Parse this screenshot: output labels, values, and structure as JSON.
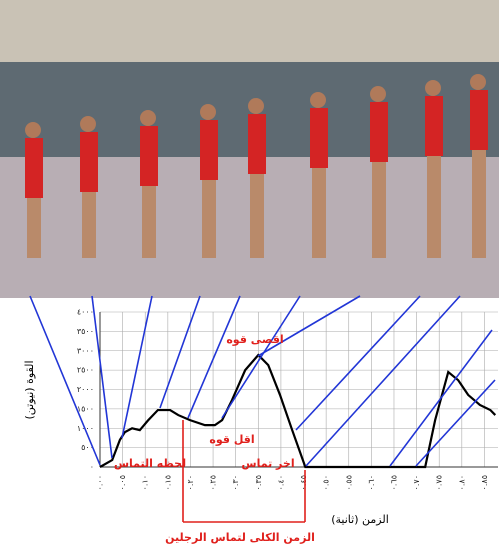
{
  "chart_data": {
    "type": "line",
    "x_label": "الزمن (ثانية)",
    "y_label": "القوة (نيوتن)",
    "annotations": {
      "max_force": "اقصى قوه",
      "min_force": "اقل قوه",
      "contact_moment": "لحظه التماس",
      "last_contact": "اخر تماس",
      "total_contact_time": "الزمن الكلى لتماس الرجلين"
    },
    "x": [
      0,
      0.027,
      0.044,
      0.055,
      0.071,
      0.088,
      0.106,
      0.128,
      0.155,
      0.173,
      0.199,
      0.232,
      0.254,
      0.27,
      0.292,
      0.321,
      0.35,
      0.372,
      0.398,
      0.425,
      0.454,
      0.6,
      0.719,
      0.741,
      0.77,
      0.792,
      0.814,
      0.84,
      0.863,
      0.874
    ],
    "series": [
      {
        "color": "#000000",
        "values": [
          0,
          180,
          700,
          900,
          1000,
          950,
          1200,
          1470,
          1470,
          1340,
          1210,
          1080,
          1080,
          1210,
          1730,
          2500,
          2890,
          2630,
          1860,
          950,
          0,
          0,
          0,
          1210,
          2450,
          2240,
          1860,
          1600,
          1470,
          1340
        ]
      }
    ],
    "xlim": [
      0,
      0.88
    ],
    "ylim": [
      0,
      4000
    ],
    "xticks": [
      {
        "value": 0,
        "label": "٠.٠٠"
      },
      {
        "value": 0.05,
        "label": "٠.٠٥"
      },
      {
        "value": 0.1,
        "label": "٠.١٠"
      },
      {
        "value": 0.15,
        "label": "٠.١٥"
      },
      {
        "value": 0.2,
        "label": "٠.٢٠"
      },
      {
        "value": 0.25,
        "label": "٠.٢٥"
      },
      {
        "value": 0.3,
        "label": "٠.٣٠"
      },
      {
        "value": 0.35,
        "label": "٠.٣٥"
      },
      {
        "value": 0.4,
        "label": "٠.٤٠"
      },
      {
        "value": 0.45,
        "label": "٠.٤٥"
      },
      {
        "value": 0.5,
        "label": "٠.٥٠"
      },
      {
        "value": 0.55,
        "label": "٠.٥٥"
      },
      {
        "value": 0.6,
        "label": "٠.٦٠"
      },
      {
        "value": 0.65,
        "label": "٠.٦٥"
      },
      {
        "value": 0.7,
        "label": "٠.٧٠"
      },
      {
        "value": 0.75,
        "label": "٠.٧٥"
      },
      {
        "value": 0.8,
        "label": "٠.٨٠"
      },
      {
        "value": 0.85,
        "label": "٠.٨٥"
      }
    ],
    "yticks": [
      {
        "value": 0,
        "label": "٠"
      },
      {
        "value": 500,
        "label": "٥٠٠"
      },
      {
        "value": 1000,
        "label": "١٠٠٠"
      },
      {
        "value": 1500,
        "label": "١٥٠٠"
      },
      {
        "value": 2000,
        "label": "٢٠٠٠"
      },
      {
        "value": 2500,
        "label": "٢٥٠٠"
      },
      {
        "value": 3000,
        "label": "٣٠٠٠"
      },
      {
        "value": 3500,
        "label": "٣٥٠٠"
      },
      {
        "value": 4000,
        "label": "٤٠٠٠"
      }
    ],
    "grid": true
  }
}
